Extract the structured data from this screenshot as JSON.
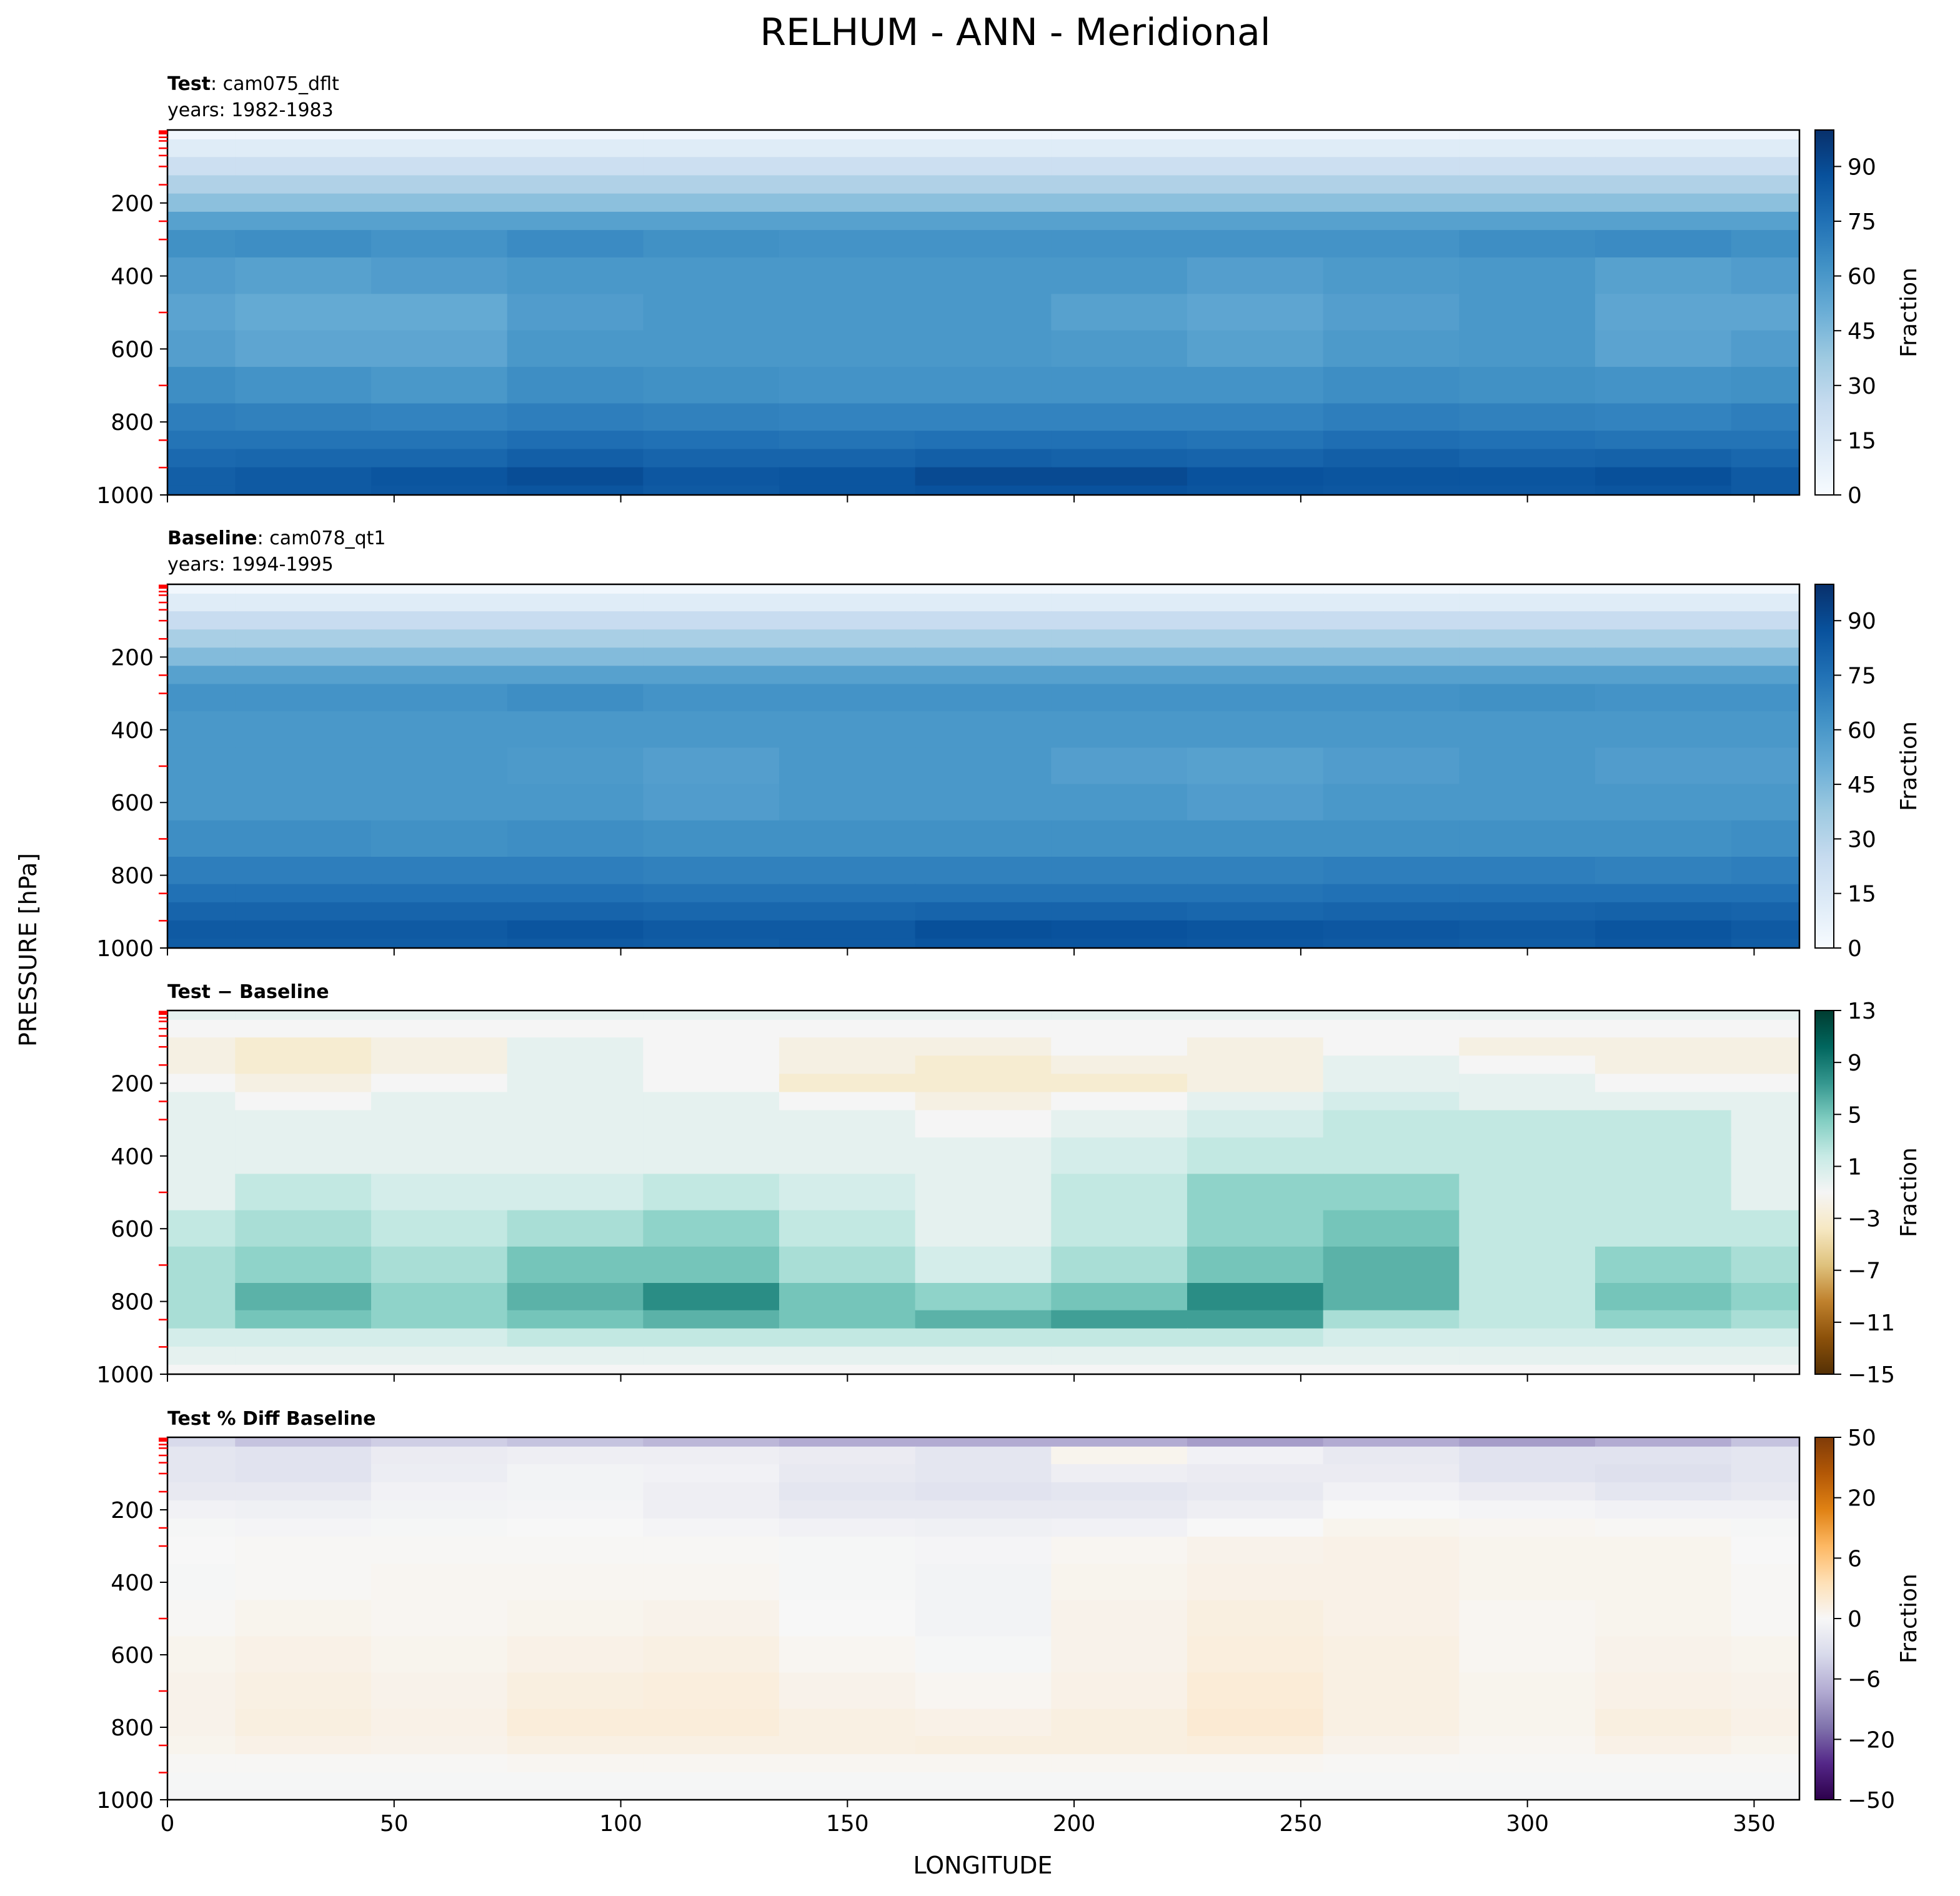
{
  "figure": {
    "title": "RELHUM - ANN - Meridional",
    "xlabel": "LONGITUDE",
    "ylabel": "PRESSURE [hPa]"
  },
  "chart_data": [
    {
      "type": "heatmap",
      "id": "test",
      "title_bold": "Test",
      "title_rest": ": cam075_dflt",
      "subtitle": "years: 1982-1983",
      "colorbar_label": "Fraction",
      "colorbar_ticks": [
        "0",
        "15",
        "30",
        "45",
        "60",
        "75",
        "90"
      ],
      "colorbar_range": [
        0,
        100
      ],
      "colormap": [
        "#f7fbff",
        "#deebf7",
        "#c6dbef",
        "#9ecae1",
        "#6baed6",
        "#4292c6",
        "#2171b5",
        "#08519c",
        "#08306b"
      ],
      "xlim": [
        0,
        360
      ],
      "ylim": [
        1000,
        0
      ],
      "x_ticks": [
        0,
        50,
        100,
        150,
        200,
        250,
        300,
        350
      ],
      "y_ticks": [
        200,
        400,
        600,
        800,
        1000
      ],
      "x": [
        0,
        30,
        60,
        90,
        120,
        150,
        180,
        210,
        240,
        270,
        300,
        330,
        360
      ],
      "y": [
        3,
        50,
        100,
        150,
        200,
        250,
        300,
        400,
        500,
        600,
        700,
        800,
        850,
        900,
        950,
        1000
      ],
      "z": [
        [
          3,
          3,
          3,
          3,
          3,
          3,
          3,
          3,
          3,
          3,
          3,
          3,
          3
        ],
        [
          12,
          12,
          12,
          12,
          12,
          12,
          12,
          12,
          12,
          12,
          12,
          12,
          12
        ],
        [
          22,
          22,
          22,
          22,
          22,
          22,
          22,
          22,
          22,
          22,
          22,
          22,
          22
        ],
        [
          32,
          32,
          32,
          32,
          32,
          32,
          32,
          32,
          32,
          32,
          32,
          32,
          32
        ],
        [
          42,
          42,
          42,
          42,
          42,
          42,
          42,
          42,
          42,
          42,
          42,
          42,
          42
        ],
        [
          56,
          56,
          56,
          56,
          56,
          56,
          56,
          56,
          56,
          56,
          56,
          56,
          56
        ],
        [
          63,
          64,
          62,
          65,
          63,
          62,
          62,
          62,
          62,
          62,
          64,
          65,
          63
        ],
        [
          58,
          56,
          58,
          60,
          60,
          60,
          60,
          60,
          57,
          59,
          60,
          56,
          58
        ],
        [
          55,
          52,
          52,
          58,
          60,
          60,
          60,
          56,
          54,
          57,
          60,
          54,
          54
        ],
        [
          57,
          54,
          54,
          60,
          60,
          60,
          60,
          59,
          56,
          59,
          60,
          55,
          58
        ],
        [
          64,
          62,
          60,
          64,
          63,
          62,
          62,
          62,
          62,
          64,
          63,
          62,
          63
        ],
        [
          70,
          69,
          68,
          70,
          69,
          68,
          68,
          68,
          68,
          70,
          69,
          68,
          70
        ],
        [
          74,
          74,
          74,
          76,
          75,
          74,
          75,
          75,
          74,
          76,
          75,
          74,
          74
        ],
        [
          78,
          79,
          79,
          82,
          80,
          80,
          82,
          81,
          80,
          82,
          80,
          81,
          79
        ],
        [
          82,
          84,
          86,
          89,
          85,
          86,
          90,
          90,
          87,
          86,
          86,
          88,
          84
        ],
        [
          82,
          84,
          85,
          86,
          84,
          86,
          87,
          87,
          86,
          85,
          85,
          86,
          84
        ]
      ]
    },
    {
      "type": "heatmap",
      "id": "baseline",
      "title_bold": "Baseline",
      "title_rest": ": cam078_qt1",
      "subtitle": "years: 1994-1995",
      "colorbar_label": "Fraction",
      "colorbar_ticks": [
        "0",
        "15",
        "30",
        "45",
        "60",
        "75",
        "90"
      ],
      "colorbar_range": [
        0,
        100
      ],
      "colormap": [
        "#f7fbff",
        "#deebf7",
        "#c6dbef",
        "#9ecae1",
        "#6baed6",
        "#4292c6",
        "#2171b5",
        "#08519c",
        "#08306b"
      ],
      "xlim": [
        0,
        360
      ],
      "ylim": [
        1000,
        0
      ],
      "x_ticks": [
        0,
        50,
        100,
        150,
        200,
        250,
        300,
        350
      ],
      "y_ticks": [
        200,
        400,
        600,
        800,
        1000
      ],
      "x": [
        0,
        30,
        60,
        90,
        120,
        150,
        180,
        210,
        240,
        270,
        300,
        330,
        360
      ],
      "y": [
        3,
        50,
        100,
        150,
        200,
        250,
        300,
        400,
        500,
        600,
        700,
        800,
        850,
        900,
        950,
        1000
      ],
      "z": [
        [
          3,
          3,
          3,
          3,
          3,
          3,
          3,
          3,
          3,
          3,
          3,
          3,
          3
        ],
        [
          12,
          12,
          12,
          12,
          12,
          12,
          12,
          12,
          12,
          12,
          12,
          12,
          12
        ],
        [
          24,
          24,
          24,
          24,
          24,
          24,
          24,
          24,
          24,
          24,
          24,
          24,
          24
        ],
        [
          34,
          34,
          34,
          34,
          34,
          34,
          34,
          34,
          34,
          34,
          34,
          34,
          34
        ],
        [
          44,
          44,
          44,
          44,
          44,
          44,
          44,
          44,
          44,
          44,
          44,
          44,
          44
        ],
        [
          56,
          56,
          56,
          56,
          56,
          56,
          56,
          56,
          56,
          56,
          56,
          56,
          56
        ],
        [
          62,
          62,
          62,
          64,
          62,
          62,
          62,
          62,
          62,
          62,
          63,
          62,
          62
        ],
        [
          60,
          60,
          60,
          60,
          60,
          60,
          60,
          60,
          60,
          60,
          60,
          60,
          60
        ],
        [
          60,
          60,
          60,
          59,
          57,
          60,
          60,
          57,
          56,
          58,
          60,
          58,
          58
        ],
        [
          60,
          60,
          60,
          60,
          58,
          60,
          60,
          60,
          58,
          60,
          60,
          60,
          60
        ],
        [
          64,
          64,
          63,
          64,
          63,
          63,
          63,
          63,
          63,
          63,
          63,
          63,
          64
        ],
        [
          70,
          70,
          70,
          70,
          69,
          69,
          69,
          69,
          69,
          70,
          70,
          69,
          70
        ],
        [
          75,
          75,
          75,
          75,
          74,
          74,
          74,
          74,
          74,
          75,
          75,
          75,
          75
        ],
        [
          80,
          80,
          80,
          80,
          79,
          79,
          80,
          80,
          79,
          80,
          80,
          81,
          80
        ],
        [
          84,
          84,
          84,
          86,
          84,
          84,
          88,
          87,
          86,
          85,
          84,
          86,
          84
        ],
        [
          83,
          83,
          83,
          84,
          83,
          84,
          86,
          86,
          85,
          84,
          83,
          85,
          83
        ]
      ]
    },
    {
      "type": "heatmap",
      "id": "diff",
      "title_bold": "Test − Baseline",
      "title_rest": "",
      "subtitle": "",
      "colorbar_label": "Fraction",
      "colorbar_ticks": [
        "13",
        "9",
        "5",
        "1",
        "−3",
        "−7",
        "−11",
        "−15"
      ],
      "colorbar_range": [
        -15,
        13
      ],
      "colormap": [
        "#543005",
        "#8c510a",
        "#bf812d",
        "#dfc27d",
        "#f6e8c3",
        "#f5f5f5",
        "#c7eae5",
        "#80cdc1",
        "#35978f",
        "#01665e",
        "#003c30"
      ],
      "xlim": [
        0,
        360
      ],
      "ylim": [
        1000,
        0
      ],
      "x_ticks": [
        0,
        50,
        100,
        150,
        200,
        250,
        300,
        350
      ],
      "y_ticks": [
        200,
        400,
        600,
        800,
        1000
      ],
      "x": [
        0,
        30,
        60,
        90,
        120,
        150,
        180,
        210,
        240,
        270,
        300,
        330,
        360
      ],
      "y": [
        3,
        50,
        100,
        150,
        200,
        250,
        300,
        400,
        500,
        600,
        700,
        800,
        850,
        900,
        950,
        1000
      ],
      "z": [
        [
          0,
          0,
          0,
          0,
          0,
          0,
          0,
          0,
          0,
          0,
          0,
          0,
          0
        ],
        [
          -1,
          -1,
          -1,
          -1,
          -1,
          -1,
          -1,
          -1,
          -1,
          -1,
          -1,
          -1,
          -1
        ],
        [
          -2,
          -3,
          -2,
          0,
          -1,
          -2,
          -2,
          -1,
          -2,
          -1,
          -2,
          -2,
          -2
        ],
        [
          -2,
          -3,
          -2,
          0,
          -1,
          -2,
          -3,
          -2,
          -2,
          0,
          -1,
          -2,
          -2
        ],
        [
          -1,
          -2,
          -1,
          0,
          -1,
          -3,
          -3,
          -3,
          -2,
          0,
          0,
          -1,
          -1
        ],
        [
          0,
          -1,
          0,
          0,
          0,
          -1,
          -2,
          -1,
          0,
          1,
          0,
          0,
          0
        ],
        [
          0,
          0,
          0,
          0,
          0,
          0,
          -1,
          0,
          1,
          2,
          2,
          2,
          0
        ],
        [
          0,
          0,
          0,
          0,
          0,
          0,
          0,
          1,
          2,
          2,
          2,
          2,
          0
        ],
        [
          0,
          2,
          1,
          1,
          2,
          1,
          0,
          2,
          4,
          4,
          2,
          2,
          0
        ],
        [
          2,
          3,
          2,
          3,
          4,
          2,
          0,
          2,
          4,
          5,
          2,
          2,
          2
        ],
        [
          3,
          4,
          3,
          5,
          5,
          3,
          1,
          3,
          5,
          6,
          2,
          4,
          3
        ],
        [
          3,
          6,
          4,
          6,
          8,
          5,
          4,
          5,
          8,
          6,
          2,
          5,
          4
        ],
        [
          3,
          5,
          4,
          5,
          6,
          5,
          6,
          7,
          7,
          3,
          2,
          4,
          3
        ],
        [
          1,
          1,
          1,
          2,
          2,
          2,
          2,
          2,
          2,
          1,
          1,
          1,
          1
        ],
        [
          0,
          0,
          0,
          0,
          0,
          0,
          0,
          0,
          0,
          0,
          0,
          0,
          0
        ],
        [
          -1,
          -1,
          -1,
          -1,
          -1,
          -1,
          -1,
          -1,
          -1,
          -1,
          -1,
          -1,
          -1
        ]
      ]
    },
    {
      "type": "heatmap",
      "id": "pctdiff",
      "title_bold": "Test % Diff Baseline",
      "title_rest": "",
      "subtitle": "",
      "colorbar_label": "Fraction",
      "colorbar_ticks": [
        "50",
        "20",
        "6",
        "0",
        "−6",
        "−20",
        "−50"
      ],
      "colorbar_range": [
        -100,
        100
      ],
      "colormap": [
        "#2d004b",
        "#542788",
        "#8073ac",
        "#b2abd2",
        "#d8daeb",
        "#f7f7f7",
        "#fee0b6",
        "#fdb863",
        "#e08214",
        "#b35806",
        "#7f3b08"
      ],
      "xlim": [
        0,
        360
      ],
      "ylim": [
        1000,
        0
      ],
      "x_ticks": [
        0,
        50,
        100,
        150,
        200,
        250,
        300,
        350
      ],
      "x_ticklabels": [
        "0",
        "50",
        "100",
        "150",
        "200",
        "250",
        "300",
        "350"
      ],
      "y_ticks": [
        200,
        400,
        600,
        800,
        1000
      ],
      "x": [
        0,
        30,
        60,
        90,
        120,
        150,
        180,
        210,
        240,
        270,
        300,
        330,
        360
      ],
      "y": [
        3,
        50,
        100,
        150,
        200,
        250,
        300,
        400,
        500,
        600,
        700,
        800,
        850,
        900,
        950,
        1000
      ],
      "z": [
        [
          -20,
          -30,
          -25,
          -30,
          -35,
          -40,
          -40,
          -40,
          -45,
          -40,
          -45,
          -40,
          -30
        ],
        [
          -12,
          -14,
          -8,
          -6,
          -6,
          -8,
          -12,
          3,
          -4,
          -10,
          -14,
          -14,
          -12
        ],
        [
          -12,
          -14,
          -7,
          -3,
          -4,
          -10,
          -12,
          -6,
          -8,
          -8,
          -14,
          -16,
          -12
        ],
        [
          -10,
          -10,
          -4,
          -3,
          -6,
          -12,
          -14,
          -12,
          -10,
          -4,
          -8,
          -12,
          -10
        ],
        [
          -4,
          -5,
          -3,
          -2,
          -6,
          -10,
          -10,
          -10,
          -6,
          0,
          -2,
          -4,
          -4
        ],
        [
          -1,
          -2,
          -1,
          0,
          -2,
          -4,
          -5,
          -4,
          0,
          3,
          2,
          1,
          -1
        ],
        [
          0,
          1,
          1,
          1,
          1,
          -1,
          -2,
          2,
          4,
          5,
          3,
          3,
          0
        ],
        [
          -1,
          1,
          2,
          2,
          2,
          -1,
          -3,
          3,
          5,
          5,
          3,
          3,
          1
        ],
        [
          1,
          3,
          2,
          3,
          4,
          0,
          -3,
          4,
          7,
          5,
          2,
          3,
          1
        ],
        [
          3,
          5,
          3,
          5,
          6,
          2,
          -1,
          4,
          8,
          6,
          2,
          4,
          3
        ],
        [
          4,
          6,
          4,
          7,
          8,
          4,
          2,
          5,
          10,
          6,
          3,
          5,
          4
        ],
        [
          4,
          7,
          5,
          9,
          9,
          6,
          5,
          7,
          11,
          6,
          3,
          7,
          5
        ],
        [
          3,
          5,
          4,
          6,
          6,
          6,
          7,
          7,
          8,
          4,
          2,
          5,
          3
        ],
        [
          1,
          1,
          1,
          2,
          2,
          2,
          2,
          2,
          2,
          1,
          1,
          1,
          1
        ],
        [
          -1,
          -1,
          -1,
          -1,
          -1,
          -1,
          -1,
          -1,
          -1,
          -1,
          -1,
          -1,
          -1
        ],
        [
          -2,
          -2,
          -2,
          -2,
          -2,
          -2,
          -2,
          -2,
          -2,
          -2,
          -2,
          -2,
          -2
        ]
      ]
    }
  ]
}
